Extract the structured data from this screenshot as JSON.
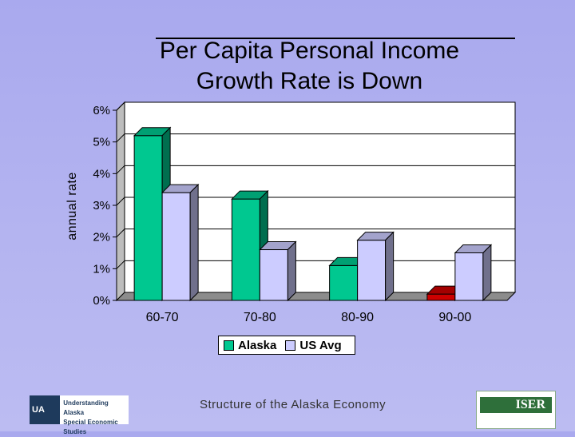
{
  "chart_data": {
    "type": "bar",
    "title_line1": "Per Capita Personal Income",
    "title_line2": "Growth Rate is Down",
    "ylabel": "annual rate",
    "xlabel": "",
    "ylim": [
      0,
      6
    ],
    "yticks": [
      "0%",
      "1%",
      "2%",
      "3%",
      "4%",
      "5%",
      "6%"
    ],
    "categories": [
      "60-70",
      "70-80",
      "80-90",
      "90-00"
    ],
    "grid": true,
    "legend_position": "bottom",
    "series": [
      {
        "name": "Alaska",
        "values": [
          5.2,
          3.2,
          1.1,
          0.2
        ]
      },
      {
        "name": "US Avg",
        "values": [
          3.4,
          1.6,
          1.9,
          1.5
        ]
      }
    ],
    "colors": {
      "alaska": "#00c890",
      "alaska_negative_period": "#cc0000",
      "us_avg": "#ccccff"
    }
  },
  "footer": {
    "text": "Structure of the Alaska Economy",
    "logo_left_mark": "UA",
    "logo_left_title": "Understanding Alaska",
    "logo_left_sub": "Special Economic Studies",
    "logo_right_name": "ISER"
  }
}
